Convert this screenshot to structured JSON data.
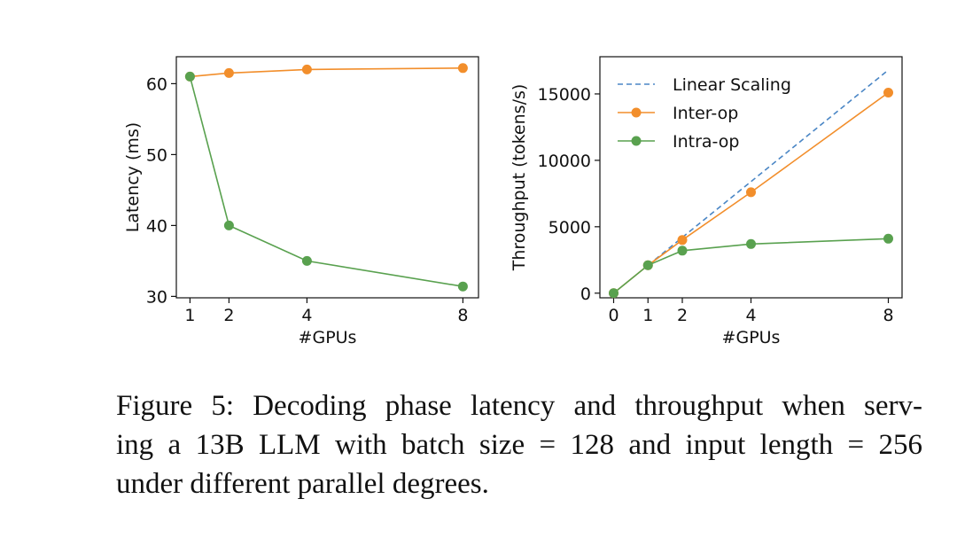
{
  "chart_data": [
    {
      "type": "line",
      "xlabel": "#GPUs",
      "ylabel": "Latency (ms)",
      "xlim": [
        0.65,
        8.4
      ],
      "ylim": [
        29.8,
        63.8
      ],
      "xticks": [
        1,
        2,
        4,
        8
      ],
      "yticks": [
        30,
        40,
        50,
        60
      ],
      "grid": false,
      "series": [
        {
          "name": "Inter-op",
          "color": "#f28e2b",
          "x": [
            1,
            2,
            4,
            8
          ],
          "y": [
            61.0,
            61.5,
            62.0,
            62.2
          ]
        },
        {
          "name": "Intra-op",
          "color": "#59a14f",
          "x": [
            1,
            2,
            4,
            8
          ],
          "y": [
            61.0,
            40.0,
            35.0,
            31.4
          ]
        }
      ]
    },
    {
      "type": "line",
      "xlabel": "#GPUs",
      "ylabel": "Throughput (tokens/s)",
      "xlim": [
        -0.4,
        8.4
      ],
      "ylim": [
        -350,
        17800
      ],
      "xticks": [
        0,
        1,
        2,
        4,
        8
      ],
      "yticks": [
        0,
        5000,
        10000,
        15000
      ],
      "grid": false,
      "legend_position": "top-left",
      "series": [
        {
          "name": "Linear Scaling",
          "color": "#4a86c5",
          "style": "dashed",
          "x": [
            1,
            8
          ],
          "y": [
            2100,
            16800
          ]
        },
        {
          "name": "Inter-op",
          "color": "#f28e2b",
          "x": [
            0,
            1,
            2,
            4,
            8
          ],
          "y": [
            0,
            2100,
            4000,
            7600,
            15100
          ]
        },
        {
          "name": "Intra-op",
          "color": "#59a14f",
          "x": [
            0,
            1,
            2,
            4,
            8
          ],
          "y": [
            0,
            2100,
            3200,
            3700,
            4100
          ]
        }
      ]
    }
  ],
  "caption": {
    "line1": "Figure 5: Decoding phase latency and throughput when serv-",
    "line2": "ing a 13B LLM with batch size = 128 and input length = 256",
    "line3": "under different parallel degrees."
  }
}
